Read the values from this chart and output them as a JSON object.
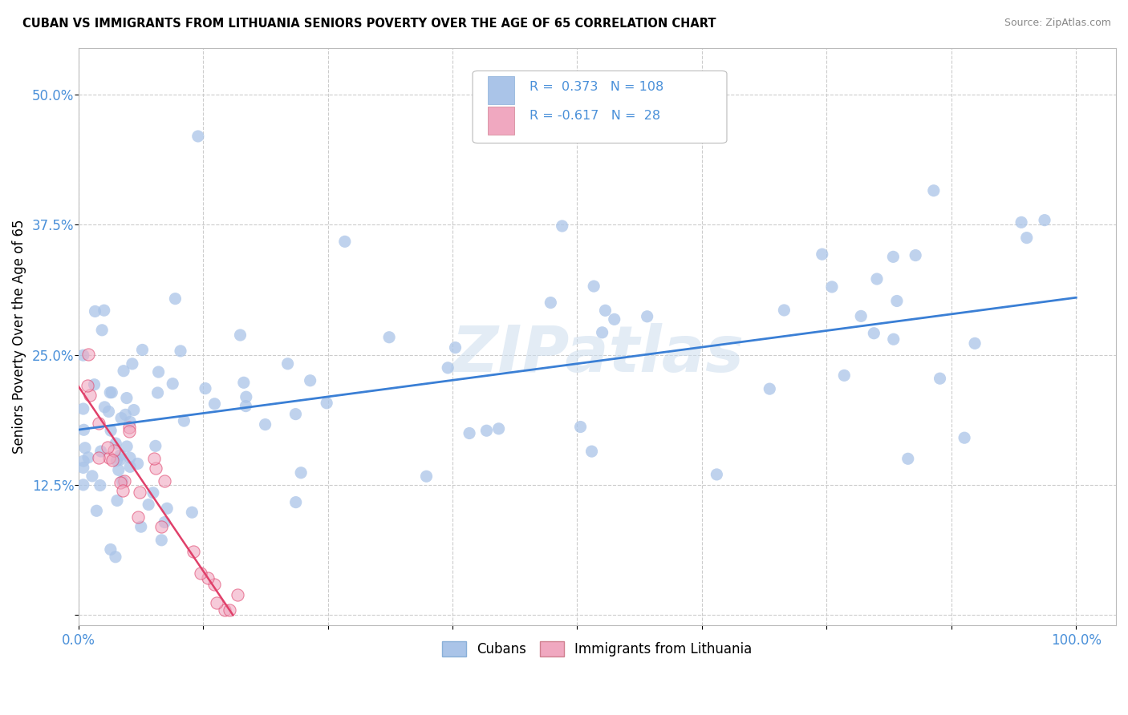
{
  "title": "CUBAN VS IMMIGRANTS FROM LITHUANIA SENIORS POVERTY OVER THE AGE OF 65 CORRELATION CHART",
  "source": "Source: ZipAtlas.com",
  "ylabel": "Seniors Poverty Over the Age of 65",
  "watermark": "ZIPatlas",
  "cubans_R": 0.373,
  "cubans_N": 108,
  "lithuania_R": -0.617,
  "lithuania_N": 28,
  "x_ticks": [
    0.0,
    0.125,
    0.25,
    0.375,
    0.5,
    0.625,
    0.75,
    0.875,
    1.0
  ],
  "y_ticks": [
    0.0,
    0.125,
    0.25,
    0.375,
    0.5
  ],
  "xlim": [
    0.0,
    1.04
  ],
  "ylim": [
    -0.01,
    0.545
  ],
  "blue_color": "#aac4e8",
  "pink_color": "#f0a8c0",
  "blue_line_color": "#3a7fd5",
  "pink_line_color": "#e0406a",
  "legend_color": "#4a90d9",
  "background_color": "#ffffff",
  "grid_color": "#cccccc",
  "tick_color": "#4a90d9",
  "blue_line_start_y": 0.178,
  "blue_line_end_y": 0.305,
  "pink_line_start_x": 0.0,
  "pink_line_start_y": 0.22,
  "pink_line_end_x": 0.155,
  "pink_line_end_y": 0.0
}
